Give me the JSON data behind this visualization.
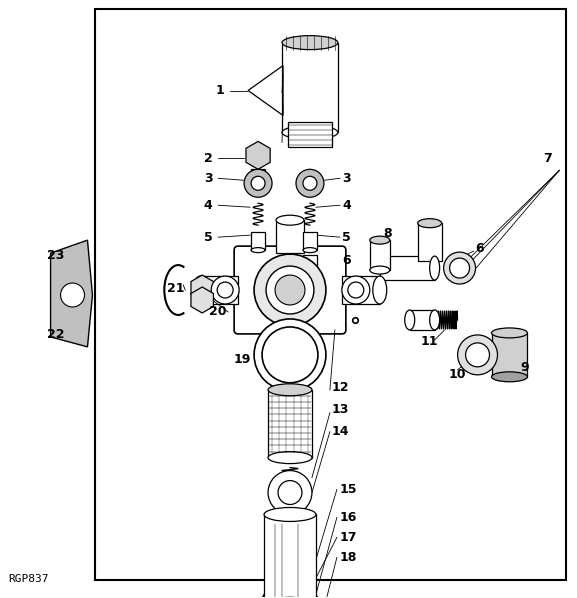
{
  "bg_color": "#ffffff",
  "border_color": "#000000",
  "watermark": "RGP837",
  "fig_width": 5.77,
  "fig_height": 5.98,
  "dpi": 100
}
